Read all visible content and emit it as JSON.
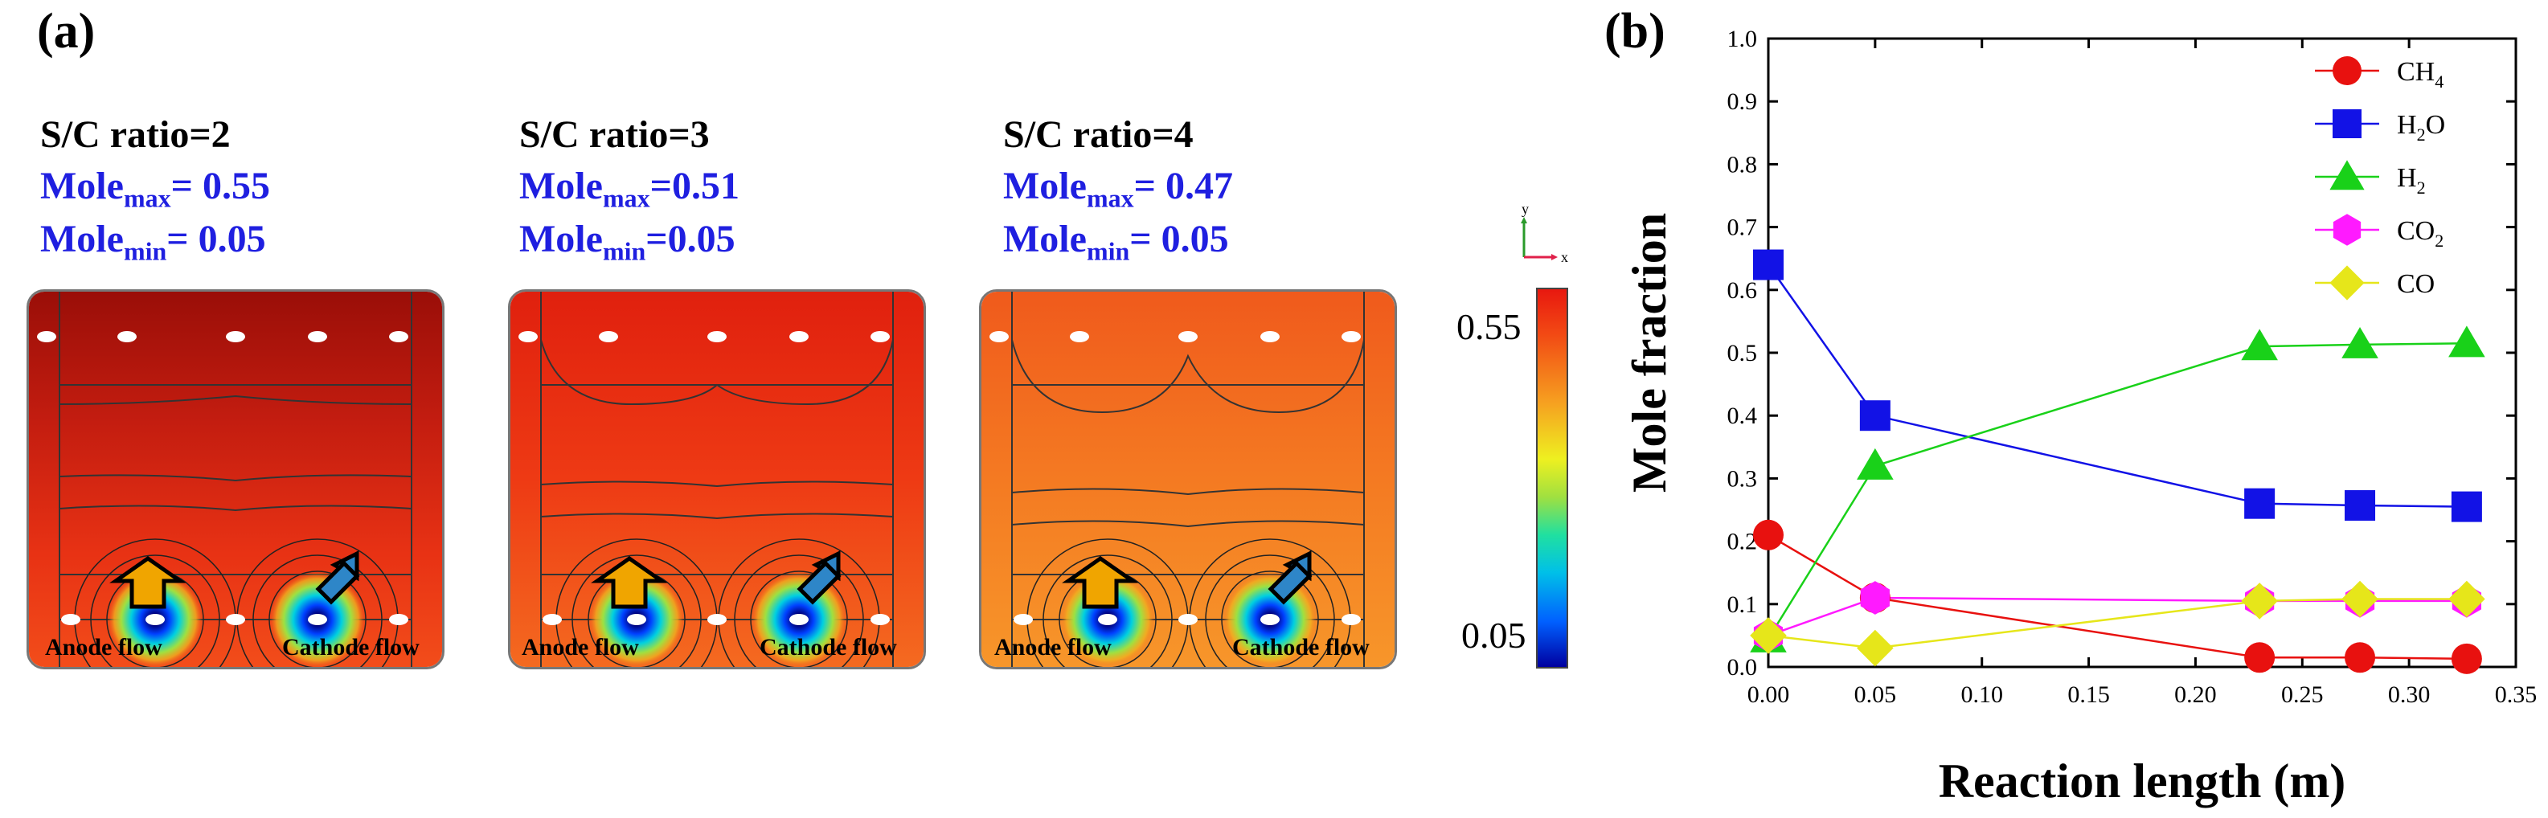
{
  "panel_a": {
    "label": "(a)",
    "flow_labels": {
      "anode": "Anode flow",
      "cathode": "Cathode flow"
    },
    "contours": [
      {
        "title": "S/C ratio=2",
        "max_label": "Mole",
        "max_sub": "max",
        "max_value": "= 0.55",
        "min_label": "Mole",
        "min_sub": "min",
        "min_value": "= 0.05",
        "max_fraction": 0.55
      },
      {
        "title": "S/C ratio=3",
        "max_label": "Mole",
        "max_sub": "max",
        "max_value": "=0.51",
        "min_label": "Mole",
        "min_sub": "min",
        "min_value": "=0.05",
        "max_fraction": 0.51
      },
      {
        "title": "S/C ratio=4",
        "max_label": "Mole",
        "max_sub": "max",
        "max_value": "= 0.47",
        "min_label": "Mole",
        "min_sub": "min",
        "min_value": "= 0.05",
        "max_fraction": 0.47
      }
    ],
    "colorbar": {
      "max": "0.55",
      "min": "0.05"
    },
    "axes_triad": {
      "y": "y",
      "x": "x"
    }
  },
  "panel_b": {
    "label": "(b)"
  },
  "chart_data": {
    "type": "line",
    "xlabel": "Reaction length (m)",
    "ylabel": "Mole fraction",
    "xlim": [
      0,
      0.35
    ],
    "ylim": [
      0,
      1.0
    ],
    "xticks": [
      0.0,
      0.05,
      0.1,
      0.15,
      0.2,
      0.25,
      0.3,
      0.35
    ],
    "xtick_labels": [
      "0.00",
      "0.05",
      "0.10",
      "0.15",
      "0.20",
      "0.25",
      "0.30",
      "0.35"
    ],
    "yticks": [
      0.0,
      0.1,
      0.2,
      0.3,
      0.4,
      0.5,
      0.6,
      0.7,
      0.8,
      0.9,
      1.0
    ],
    "ytick_labels": [
      "0.0",
      "0.1",
      "0.2",
      "0.3",
      "0.4",
      "0.5",
      "0.6",
      "0.7",
      "0.8",
      "0.9",
      "1.0"
    ],
    "x": [
      0.0,
      0.05,
      0.23,
      0.277,
      0.327
    ],
    "legend_position": "top-right",
    "series": [
      {
        "name": "CH4",
        "label": "CH",
        "sub": "4",
        "marker": "circle",
        "color": "#e8110f",
        "values": [
          0.21,
          0.11,
          0.015,
          0.015,
          0.013
        ]
      },
      {
        "name": "H2O",
        "label": "H",
        "sub": "2",
        "suffix": "O",
        "marker": "square",
        "color": "#1212e6",
        "values": [
          0.64,
          0.4,
          0.26,
          0.257,
          0.255
        ]
      },
      {
        "name": "H2",
        "label": "H",
        "sub": "2",
        "marker": "triangle",
        "color": "#19d119",
        "values": [
          0.045,
          0.32,
          0.51,
          0.513,
          0.515
        ]
      },
      {
        "name": "CO2",
        "label": "CO",
        "sub": "2",
        "marker": "hexagon",
        "color": "#ff1aff",
        "values": [
          0.05,
          0.11,
          0.105,
          0.105,
          0.105
        ]
      },
      {
        "name": "CO",
        "label": "CO",
        "sub": "",
        "marker": "diamond",
        "color": "#e6e61a",
        "values": [
          0.05,
          0.03,
          0.105,
          0.108,
          0.108
        ]
      }
    ]
  }
}
